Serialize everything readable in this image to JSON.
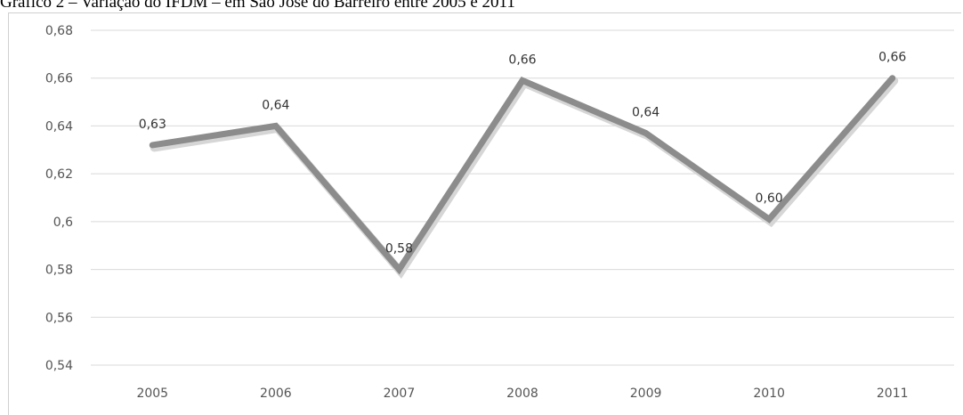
{
  "chart_data": {
    "type": "line",
    "title": "Gráfico 2 – Variação do IFDM – em São José do Barreiro entre 2005 e 2011",
    "xlabel": "",
    "ylabel": "",
    "categories": [
      "2005",
      "2006",
      "2007",
      "2008",
      "2009",
      "2010",
      "2011"
    ],
    "series": [
      {
        "values": [
          0.632,
          0.64,
          0.58,
          0.659,
          0.637,
          0.601,
          0.66
        ],
        "labels": [
          "0,63",
          "0,64",
          "0,58",
          "0,66",
          "0,64",
          "0,60",
          "0,66"
        ],
        "color": "#8c8c8c"
      }
    ],
    "ylim": [
      0.54,
      0.68
    ],
    "yticks": [
      0.54,
      0.56,
      0.58,
      0.6,
      0.62,
      0.64,
      0.66,
      0.68
    ],
    "ytick_labels": [
      "0,54",
      "0,56",
      "0,58",
      "0,6",
      "0,62",
      "0,64",
      "0,66",
      "0,68"
    ],
    "grid": true,
    "legend": "none",
    "colors": {
      "gridline": "#d9d9d9",
      "line": "#8c8c8c"
    }
  }
}
